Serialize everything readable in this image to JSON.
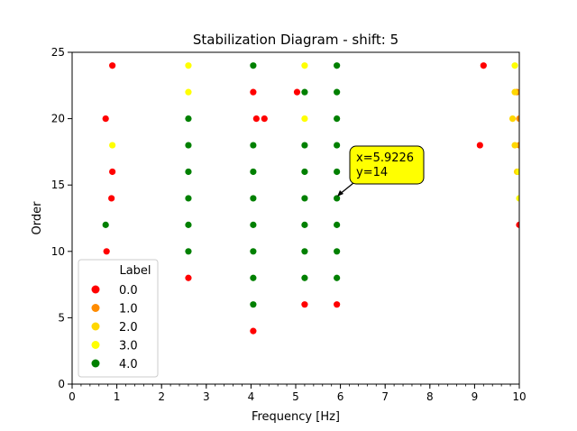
{
  "chart_data": {
    "type": "scatter",
    "title": "Stabilization Diagram - shift: 5",
    "xlabel": "Frequency [Hz]",
    "ylabel": "Order",
    "xlim": [
      0,
      10
    ],
    "ylim": [
      0,
      25
    ],
    "xticks": [
      "0",
      "1",
      "2",
      "3",
      "4",
      "5",
      "6",
      "7",
      "8",
      "9",
      "10"
    ],
    "yticks": [
      "0",
      "5",
      "10",
      "15",
      "20",
      "25"
    ],
    "grid": false,
    "legend": {
      "title": "Label",
      "placement": "lower-left",
      "entries": [
        {
          "label": "0.0",
          "color": "#ff0000"
        },
        {
          "label": "1.0",
          "color": "#ff8c00"
        },
        {
          "label": "2.0",
          "color": "#ffd700"
        },
        {
          "label": "3.0",
          "color": "#ffff00"
        },
        {
          "label": "4.0",
          "color": "#008000"
        }
      ]
    },
    "annotation": {
      "text_x": "x=5.9226",
      "text_y": "y=14",
      "x": 5.9226,
      "y": 14,
      "box_color": "#ffff00"
    },
    "series": [
      {
        "label": "0.0",
        "color": "#ff0000",
        "points": [
          [
            0.9,
            24
          ],
          [
            0.75,
            20
          ],
          [
            0.9,
            16
          ],
          [
            0.88,
            14
          ],
          [
            0.77,
            10
          ],
          [
            2.6,
            8
          ],
          [
            4.05,
            22
          ],
          [
            4.12,
            20
          ],
          [
            4.3,
            20
          ],
          [
            4.05,
            4
          ],
          [
            5.03,
            22
          ],
          [
            5.2,
            6
          ],
          [
            5.92,
            6
          ],
          [
            9.2,
            24
          ],
          [
            9.12,
            18
          ],
          [
            10.0,
            12
          ]
        ]
      },
      {
        "label": "1.0",
        "color": "#ff8c00",
        "points": [
          [
            9.95,
            22
          ],
          [
            10.0,
            20
          ],
          [
            10.0,
            18
          ]
        ]
      },
      {
        "label": "2.0",
        "color": "#ffd700",
        "points": [
          [
            9.9,
            22
          ],
          [
            9.85,
            20
          ],
          [
            9.9,
            18
          ],
          [
            9.95,
            16
          ]
        ]
      },
      {
        "label": "3.0",
        "color": "#ffff00",
        "points": [
          [
            0.9,
            18
          ],
          [
            2.6,
            24
          ],
          [
            2.6,
            22
          ],
          [
            5.2,
            24
          ],
          [
            5.2,
            20
          ],
          [
            9.9,
            24
          ],
          [
            10.0,
            16
          ],
          [
            10.0,
            14
          ]
        ]
      },
      {
        "label": "4.0",
        "color": "#008000",
        "points": [
          [
            0.75,
            12
          ],
          [
            2.6,
            20
          ],
          [
            2.6,
            18
          ],
          [
            2.6,
            16
          ],
          [
            2.6,
            14
          ],
          [
            2.6,
            12
          ],
          [
            2.6,
            10
          ],
          [
            4.05,
            24
          ],
          [
            4.05,
            18
          ],
          [
            4.05,
            16
          ],
          [
            4.05,
            14
          ],
          [
            4.05,
            12
          ],
          [
            4.05,
            10
          ],
          [
            4.05,
            8
          ],
          [
            4.05,
            6
          ],
          [
            5.2,
            22
          ],
          [
            5.2,
            18
          ],
          [
            5.2,
            16
          ],
          [
            5.2,
            14
          ],
          [
            5.2,
            12
          ],
          [
            5.2,
            10
          ],
          [
            5.2,
            8
          ],
          [
            5.92,
            24
          ],
          [
            5.92,
            22
          ],
          [
            5.92,
            20
          ],
          [
            5.92,
            18
          ],
          [
            5.92,
            16
          ],
          [
            5.92,
            14
          ],
          [
            5.92,
            12
          ],
          [
            5.92,
            10
          ],
          [
            5.92,
            8
          ]
        ]
      }
    ]
  }
}
